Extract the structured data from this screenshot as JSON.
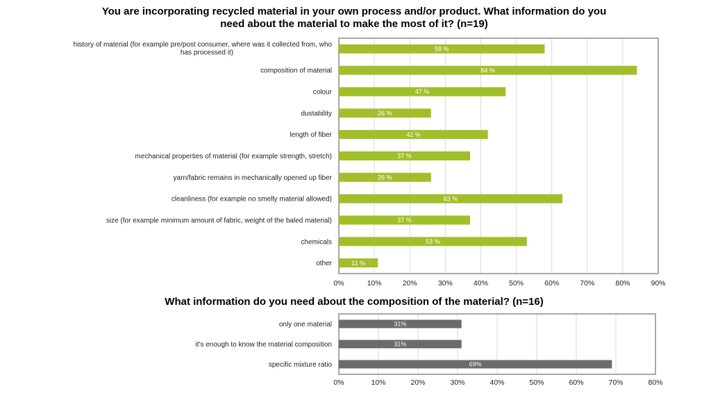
{
  "chart_data": [
    {
      "type": "bar",
      "orientation": "horizontal",
      "title": "You are incorporating recycled material in your own process and/or product. What information do you\nneed about the material to make the most of it? (n=19)",
      "categories": [
        "history of material (for example pre/post consumer, where was it collected from, who has processed it)",
        "composition of material",
        "colour",
        "dustability",
        "length of fiber",
        "mechanical properties of material (for example strength, stretch)",
        "yarn/fabric remains in mechanically opened up fiber",
        "cleanliness (for example no smelly material allowed)",
        "size (for example minimum amount of fabric, weight of the baled material)",
        "chemicals",
        "other"
      ],
      "values": [
        58,
        84,
        47,
        26,
        42,
        37,
        26,
        63,
        37,
        53,
        11
      ],
      "value_labels": [
        "58 %",
        "84 %",
        "47 %",
        "26 %",
        "42 %",
        "37 %",
        "26 %",
        "63 %",
        "37 %",
        "53 %",
        "11 %"
      ],
      "xlim": [
        0,
        90
      ],
      "xticks": [
        "0%",
        "10%",
        "20%",
        "30%",
        "40%",
        "50%",
        "60%",
        "70%",
        "80%",
        "90%"
      ],
      "grid": true,
      "bar_color": "#a1bf2b"
    },
    {
      "type": "bar",
      "orientation": "horizontal",
      "title": "What information do you need about the composition of the material? (n=16)",
      "categories": [
        "only one material",
        "it's enough to know the material composition",
        "specific mixture ratio"
      ],
      "values": [
        31,
        31,
        69
      ],
      "value_labels": [
        "31%",
        "31%",
        "69%"
      ],
      "xlim": [
        0,
        80
      ],
      "xticks": [
        "0%",
        "10%",
        "20%",
        "30%",
        "40%",
        "50%",
        "60%",
        "70%",
        "80%"
      ],
      "grid": true,
      "bar_color": "#6b6b6b"
    }
  ]
}
